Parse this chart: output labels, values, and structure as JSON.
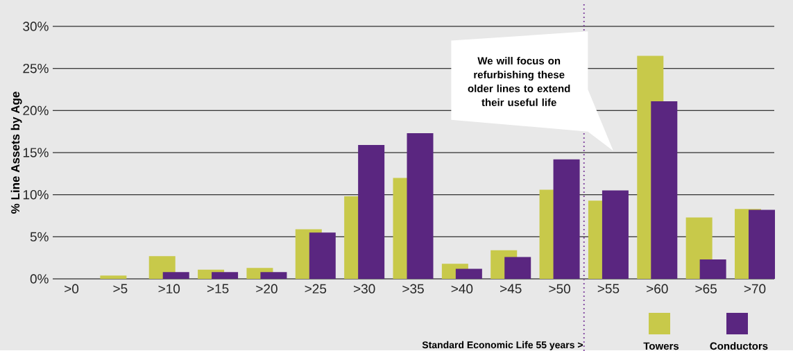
{
  "chart_data": {
    "type": "bar",
    "ylabel": "% Line Assets by Age",
    "categories": [
      ">0",
      ">5",
      ">10",
      ">15",
      ">20",
      ">25",
      ">30",
      ">35",
      ">40",
      ">45",
      ">50",
      ">55",
      ">60",
      ">65",
      ">70"
    ],
    "series": [
      {
        "name": "Towers",
        "color": "#c8c94a",
        "values": [
          0,
          0.4,
          2.7,
          1.1,
          1.3,
          5.9,
          9.8,
          12.0,
          1.8,
          3.4,
          10.6,
          9.3,
          26.5,
          7.3,
          8.3
        ]
      },
      {
        "name": "Conductors",
        "color": "#5a2680",
        "values": [
          0,
          0,
          0.8,
          0.8,
          0.8,
          5.5,
          15.9,
          17.3,
          1.2,
          2.6,
          14.2,
          10.5,
          21.1,
          2.3,
          8.2
        ]
      }
    ],
    "ylim": [
      0,
      30
    ],
    "yticks": [
      {
        "value": 0,
        "label": "0%"
      },
      {
        "value": 5,
        "label": "5%"
      },
      {
        "value": 10,
        "label": "10%"
      },
      {
        "value": 15,
        "label": "15%"
      },
      {
        "value": 20,
        "label": "20%"
      },
      {
        "value": 25,
        "label": "25%"
      },
      {
        "value": 30,
        "label": "30%"
      }
    ],
    "grid": "y",
    "legend": "bottom right",
    "annotations": [
      "We will focus on refurbishing these older lines to extend their useful life",
      "Standard Economic Life 55 years >"
    ]
  }
}
